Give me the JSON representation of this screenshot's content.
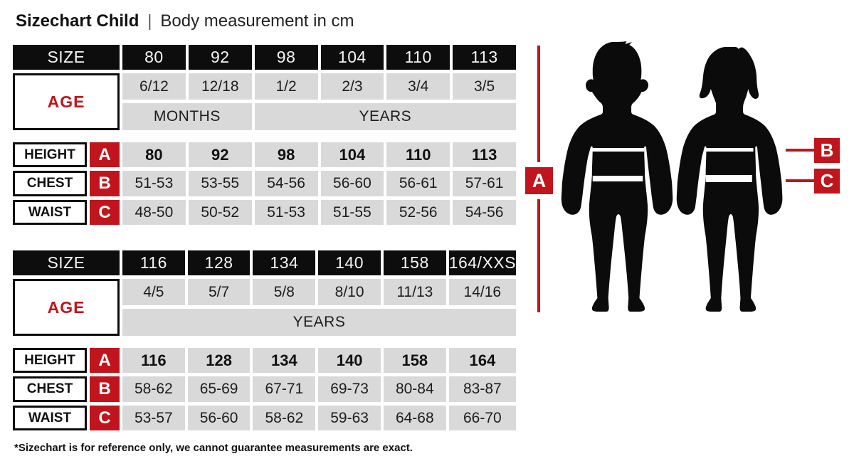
{
  "header": {
    "title": "Sizechart Child",
    "separator": "|",
    "subtitle": "Body measurement in cm"
  },
  "colors": {
    "accent_red": "#c0151c",
    "cell_black": "#0d0d0d",
    "cell_gray": "#d9d9d9"
  },
  "tables": [
    {
      "name": "child-small",
      "size_label": "SIZE",
      "age_label": "AGE",
      "sizes": [
        "80",
        "92",
        "98",
        "104",
        "110",
        "113"
      ],
      "ages": [
        "6/12",
        "12/18",
        "1/2",
        "2/3",
        "3/4",
        "3/5"
      ],
      "age_units": [
        {
          "label": "MONTHS",
          "span": 2
        },
        {
          "label": "YEARS",
          "span": 4
        }
      ],
      "rows": [
        {
          "label": "HEIGHT",
          "marker": "A",
          "bold": true,
          "values": [
            "80",
            "92",
            "98",
            "104",
            "110",
            "113"
          ]
        },
        {
          "label": "CHEST",
          "marker": "B",
          "bold": false,
          "values": [
            "51-53",
            "53-55",
            "54-56",
            "56-60",
            "56-61",
            "57-61"
          ]
        },
        {
          "label": "WAIST",
          "marker": "C",
          "bold": false,
          "values": [
            "48-50",
            "50-52",
            "51-53",
            "51-55",
            "52-56",
            "54-56"
          ]
        }
      ]
    },
    {
      "name": "child-large",
      "size_label": "SIZE",
      "age_label": "AGE",
      "sizes": [
        "116",
        "128",
        "134",
        "140",
        "158",
        "164/XXS"
      ],
      "ages": [
        "4/5",
        "5/7",
        "5/8",
        "8/10",
        "11/13",
        "14/16"
      ],
      "age_units": [
        {
          "label": "YEARS",
          "span": 6
        }
      ],
      "rows": [
        {
          "label": "HEIGHT",
          "marker": "A",
          "bold": true,
          "values": [
            "116",
            "128",
            "134",
            "140",
            "158",
            "164"
          ]
        },
        {
          "label": "CHEST",
          "marker": "B",
          "bold": false,
          "values": [
            "58-62",
            "65-69",
            "67-71",
            "69-73",
            "80-84",
            "83-87"
          ]
        },
        {
          "label": "WAIST",
          "marker": "C",
          "bold": false,
          "values": [
            "53-57",
            "56-60",
            "58-62",
            "59-63",
            "64-68",
            "66-70"
          ]
        }
      ]
    }
  ],
  "figure": {
    "marker_a": "A",
    "marker_b": "B",
    "marker_c": "C"
  },
  "footnote": "*Sizechart is for reference only, we cannot guarantee measurements are exact."
}
